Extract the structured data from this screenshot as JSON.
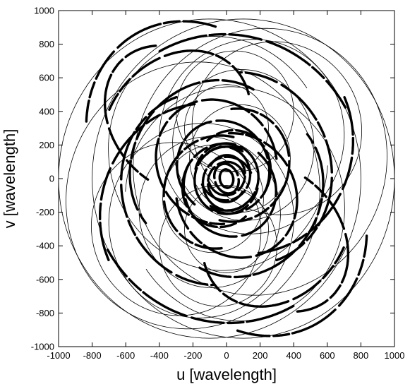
{
  "chart_data": {
    "type": "scatter",
    "title": "",
    "xlabel": "u [wavelength]",
    "ylabel": "v [wavelength]",
    "xlim": [
      -1000,
      1000
    ],
    "ylim": [
      -1000,
      1000
    ],
    "xticks": [
      -1000,
      -800,
      -600,
      -400,
      -200,
      0,
      200,
      400,
      600,
      800,
      1000
    ],
    "yticks": [
      -1000,
      -800,
      -600,
      -400,
      -200,
      0,
      200,
      400,
      600,
      800,
      1000
    ],
    "x_tick_labels": [
      "-1000",
      "-800",
      "-600",
      "-400",
      "-200",
      "0",
      "200",
      "400",
      "600",
      "800",
      "1000"
    ],
    "y_tick_labels": [
      "-1000",
      "-800",
      "-600",
      "-400",
      "-200",
      "0",
      "200",
      "400",
      "600",
      "800",
      "1000"
    ],
    "grid": false,
    "legend": "none",
    "line_color": "#000000",
    "description_of_marks": "uv-coverage tracks: concentric elliptical arcs about the origin",
    "tracks": [
      {
        "cx": 0,
        "cy": 0,
        "rx": 40,
        "ry": 55,
        "tilt": 10,
        "start": 0,
        "end": 360,
        "thick": true
      },
      {
        "cx": 0,
        "cy": 0,
        "rx": 70,
        "ry": 90,
        "tilt": 20,
        "start": 20,
        "end": 330,
        "thick": true
      },
      {
        "cx": 0,
        "cy": -20,
        "rx": 110,
        "ry": 120,
        "tilt": -10,
        "start": 30,
        "end": 340,
        "thick": true
      },
      {
        "cx": 10,
        "cy": -30,
        "rx": 150,
        "ry": 160,
        "tilt": 15,
        "start": 10,
        "end": 300,
        "thick": true
      },
      {
        "cx": 0,
        "cy": -10,
        "rx": 190,
        "ry": 200,
        "tilt": 0,
        "start": 60,
        "end": 350,
        "thick": true
      },
      {
        "cx": -30,
        "cy": -40,
        "rx": 230,
        "ry": 250,
        "tilt": -20,
        "start": 80,
        "end": 330,
        "thick": true
      },
      {
        "cx": 20,
        "cy": -60,
        "rx": 270,
        "ry": 290,
        "tilt": 30,
        "start": 120,
        "end": 380,
        "thick": true
      },
      {
        "cx": -50,
        "cy": -80,
        "rx": 320,
        "ry": 340,
        "tilt": -25,
        "start": 100,
        "end": 300,
        "thick": true
      },
      {
        "cx": 60,
        "cy": -100,
        "rx": 350,
        "ry": 380,
        "tilt": 35,
        "start": 150,
        "end": 420,
        "thick": true
      },
      {
        "cx": -100,
        "cy": 80,
        "rx": 460,
        "ry": 520,
        "tilt": -30,
        "start": 90,
        "end": 250,
        "thick": true
      },
      {
        "cx": 100,
        "cy": 60,
        "rx": 520,
        "ry": 580,
        "tilt": 20,
        "start": 270,
        "end": 430,
        "thick": true
      },
      {
        "cx": -150,
        "cy": -200,
        "rx": 600,
        "ry": 650,
        "tilt": -15,
        "start": 110,
        "end": 220,
        "thick": true
      },
      {
        "cx": 200,
        "cy": -250,
        "rx": 620,
        "ry": 700,
        "tilt": 25,
        "start": 230,
        "end": 330,
        "thick": true
      },
      {
        "cx": 0,
        "cy": 0,
        "rx": 820,
        "ry": 860,
        "tilt": 10,
        "start": 200,
        "end": 290,
        "thick": true
      },
      {
        "cx": -300,
        "cy": 300,
        "rx": 400,
        "ry": 500,
        "tilt": -40,
        "start": 60,
        "end": 200,
        "thick": true
      },
      {
        "cx": 300,
        "cy": -350,
        "rx": 380,
        "ry": 480,
        "tilt": 40,
        "start": 240,
        "end": 380,
        "thick": true
      },
      {
        "cx": 80,
        "cy": 120,
        "rx": 300,
        "ry": 320,
        "tilt": 0,
        "start": 0,
        "end": 360,
        "thick": false
      },
      {
        "cx": 100,
        "cy": 200,
        "rx": 420,
        "ry": 450,
        "tilt": 10,
        "start": 0,
        "end": 360,
        "thick": false
      },
      {
        "cx": 150,
        "cy": 250,
        "rx": 550,
        "ry": 580,
        "tilt": -10,
        "start": 0,
        "end": 360,
        "thick": false
      },
      {
        "cx": -50,
        "cy": 150,
        "rx": 650,
        "ry": 700,
        "tilt": 15,
        "start": 20,
        "end": 340,
        "thick": false
      },
      {
        "cx": 200,
        "cy": 100,
        "rx": 750,
        "ry": 800,
        "tilt": -20,
        "start": 0,
        "end": 360,
        "thick": false
      },
      {
        "cx": 0,
        "cy": 300,
        "rx": 250,
        "ry": 260,
        "tilt": 0,
        "start": 0,
        "end": 360,
        "thick": false
      },
      {
        "cx": 50,
        "cy": 400,
        "rx": 350,
        "ry": 360,
        "tilt": 5,
        "start": 0,
        "end": 360,
        "thick": false
      },
      {
        "cx": -100,
        "cy": 0,
        "rx": 900,
        "ry": 950,
        "tilt": 0,
        "start": 0,
        "end": 360,
        "thick": false
      },
      {
        "cx": 300,
        "cy": 300,
        "rx": 500,
        "ry": 520,
        "tilt": 30,
        "start": 0,
        "end": 360,
        "thick": false
      }
    ]
  }
}
